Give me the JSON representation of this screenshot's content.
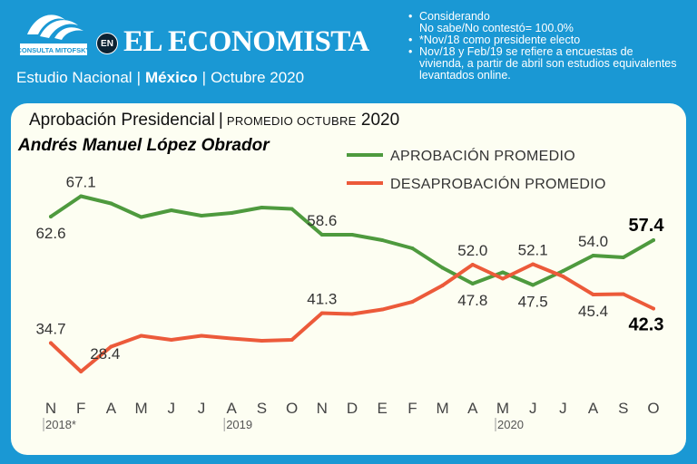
{
  "header": {
    "logo_text": "CONSULTA MITOFSKY",
    "en_badge": "EN",
    "brand": "EL ECONOMISTA",
    "study_prefix": "Estudio Nacional",
    "study_country": "México",
    "study_period": "Octubre 2020",
    "separator": "|"
  },
  "notes": [
    "Considerando",
    "No sabe/No contestó=  100.0%",
    "*Nov/18 como presidente electo",
    "Nov/18 y Feb/19 se refiere a encuestas de vivienda, a partir de abril son estudios equivalentes levantados online."
  ],
  "colors": {
    "background": "#1a98d4",
    "card": "#fdfef2",
    "approval": "#4e9a3e",
    "disapproval": "#ec5a3a"
  },
  "chart_data": {
    "type": "line",
    "title": "Aprobación Presidencial",
    "title_separator": "|",
    "title_suffix": "PROMEDIO OCTUBRE",
    "title_year": "2020",
    "subject": "Andrés Manuel López Obrador",
    "categories": [
      "N",
      "F",
      "A",
      "M",
      "J",
      "J",
      "A",
      "S",
      "O",
      "N",
      "D",
      "E",
      "F",
      "M",
      "A",
      "M",
      "J",
      "J",
      "A",
      "S",
      "O"
    ],
    "year_labels": [
      {
        "index": 0,
        "text": "2018*"
      },
      {
        "index": 6,
        "text": "2019"
      },
      {
        "index": 15,
        "text": "2020"
      }
    ],
    "series": [
      {
        "name": "APROBACIÓN PROMEDIO",
        "color": "#4e9a3e",
        "values": [
          62.6,
          67.1,
          65.5,
          62.5,
          64.0,
          62.8,
          63.4,
          64.6,
          64.3,
          58.6,
          58.6,
          57.4,
          55.6,
          51.3,
          47.8,
          50.3,
          47.5,
          50.6,
          54.0,
          53.6,
          57.4
        ],
        "labels": [
          {
            "index": 0,
            "text": "62.6",
            "pos": "below"
          },
          {
            "index": 1,
            "text": "67.1",
            "pos": "above"
          },
          {
            "index": 9,
            "text": "58.6",
            "pos": "above"
          },
          {
            "index": 14,
            "text": "47.8",
            "pos": "below"
          },
          {
            "index": 16,
            "text": "47.5",
            "pos": "below"
          },
          {
            "index": 18,
            "text": "54.0",
            "pos": "above"
          },
          {
            "index": 20,
            "text": "57.4",
            "pos": "above",
            "bold": true
          }
        ]
      },
      {
        "name": "DESAPROBACIÓN PROMEDIO",
        "color": "#ec5a3a",
        "values": [
          34.7,
          28.4,
          33.9,
          36.3,
          35.4,
          36.3,
          35.7,
          35.2,
          35.4,
          41.3,
          41.1,
          42.1,
          43.8,
          47.4,
          52.0,
          48.9,
          52.1,
          49.4,
          45.4,
          45.5,
          42.3
        ],
        "labels": [
          {
            "index": 0,
            "text": "34.7",
            "pos": "above"
          },
          {
            "index": 1,
            "text": "28.4",
            "pos": "right"
          },
          {
            "index": 9,
            "text": "41.3",
            "pos": "above"
          },
          {
            "index": 14,
            "text": "52.0",
            "pos": "above"
          },
          {
            "index": 16,
            "text": "52.1",
            "pos": "above"
          },
          {
            "index": 18,
            "text": "45.4",
            "pos": "below"
          },
          {
            "index": 20,
            "text": "42.3",
            "pos": "below",
            "bold": true
          }
        ]
      }
    ],
    "ylim": [
      26,
      70
    ],
    "grid": false,
    "legend": "top-right"
  }
}
